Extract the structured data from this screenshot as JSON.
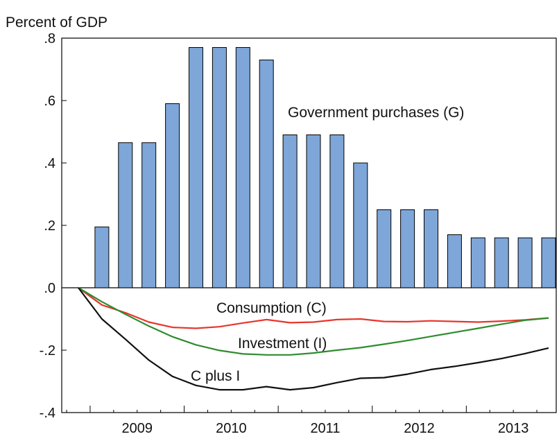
{
  "chart_data": {
    "type": "bar",
    "ylabel": "Percent of GDP",
    "ylim": [
      -0.4,
      0.8
    ],
    "yticks": [
      {
        "value": 0.8,
        "label": ".8"
      },
      {
        "value": 0.6,
        "label": ".6"
      },
      {
        "value": 0.4,
        "label": ".4"
      },
      {
        "value": 0.2,
        "label": ".2"
      },
      {
        "value": 0.0,
        "label": ".0"
      },
      {
        "value": -0.2,
        "label": "-.2"
      },
      {
        "value": -0.4,
        "label": "-.4"
      }
    ],
    "x_periods": [
      "2008Q4",
      "2009Q1",
      "2009Q2",
      "2009Q3",
      "2009Q4",
      "2010Q1",
      "2010Q2",
      "2010Q3",
      "2010Q4",
      "2011Q1",
      "2011Q2",
      "2011Q3",
      "2011Q4",
      "2012Q1",
      "2012Q2",
      "2012Q3",
      "2012Q4",
      "2013Q1",
      "2013Q2",
      "2013Q3",
      "2013Q4"
    ],
    "x_year_labels": [
      {
        "label": "2009",
        "start": 1
      },
      {
        "label": "2010",
        "start": 5
      },
      {
        "label": "2011",
        "start": 9
      },
      {
        "label": "2012",
        "start": 13
      },
      {
        "label": "2013",
        "start": 17
      }
    ],
    "series": [
      {
        "name": "Government purchases (G)",
        "kind": "bar",
        "color": "#7ea6d8",
        "values": [
          null,
          0.195,
          0.465,
          0.465,
          0.59,
          0.77,
          0.77,
          0.77,
          0.73,
          0.49,
          0.49,
          0.49,
          0.4,
          0.25,
          0.25,
          0.25,
          0.17,
          0.16,
          0.16,
          0.16,
          0.16
        ]
      },
      {
        "name": "Consumption (C)",
        "kind": "line",
        "color": "#e8352a",
        "values": [
          0.0,
          -0.055,
          -0.08,
          -0.11,
          -0.127,
          -0.13,
          -0.125,
          -0.113,
          -0.102,
          -0.112,
          -0.11,
          -0.102,
          -0.1,
          -0.108,
          -0.109,
          -0.106,
          -0.108,
          -0.11,
          -0.107,
          -0.103,
          -0.097
        ]
      },
      {
        "name": "Investment (I)",
        "kind": "line",
        "color": "#2e8b2e",
        "values": [
          0.0,
          -0.045,
          -0.085,
          -0.123,
          -0.157,
          -0.183,
          -0.201,
          -0.212,
          -0.215,
          -0.215,
          -0.209,
          -0.2,
          -0.192,
          -0.181,
          -0.169,
          -0.156,
          -0.143,
          -0.13,
          -0.117,
          -0.104,
          -0.097
        ]
      },
      {
        "name": "C plus I",
        "kind": "line",
        "color": "#111111",
        "values": [
          0.0,
          -0.1,
          -0.165,
          -0.232,
          -0.284,
          -0.313,
          -0.327,
          -0.327,
          -0.317,
          -0.327,
          -0.32,
          -0.304,
          -0.29,
          -0.288,
          -0.277,
          -0.262,
          -0.252,
          -0.24,
          -0.227,
          -0.211,
          -0.193
        ]
      }
    ]
  }
}
